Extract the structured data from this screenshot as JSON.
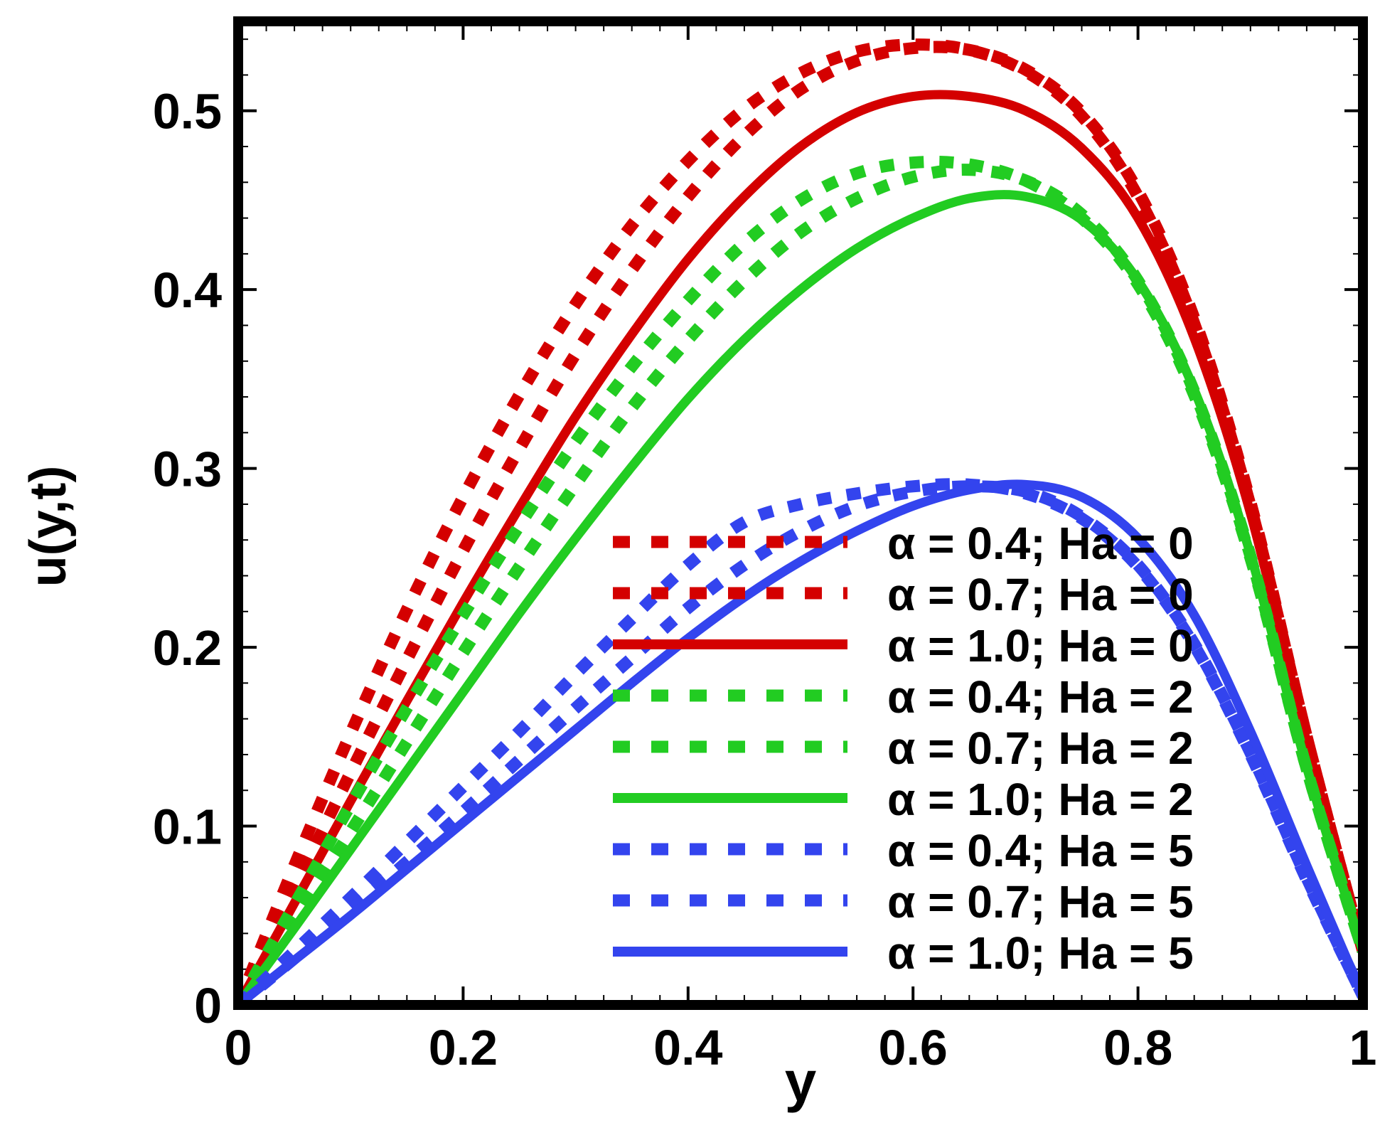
{
  "chart_data": {
    "type": "line",
    "title": "",
    "xlabel": "y",
    "ylabel": "u(y,t)",
    "xlim": [
      0,
      1
    ],
    "ylim": [
      0,
      0.55
    ],
    "x_ticks": [
      0,
      0.2,
      0.4,
      0.6,
      0.8,
      1
    ],
    "x_tick_labels": [
      "0",
      "0.2",
      "0.4",
      "0.6",
      "0.8",
      "1"
    ],
    "y_ticks": [
      0,
      0.1,
      0.2,
      0.3,
      0.4,
      0.5
    ],
    "y_tick_labels": [
      "0",
      "0.1",
      "0.2",
      "0.3",
      "0.4",
      "0.5"
    ],
    "grid": false,
    "legend_position": "lower-right",
    "x": [
      0,
      0.05,
      0.1,
      0.15,
      0.2,
      0.25,
      0.3,
      0.35,
      0.4,
      0.45,
      0.5,
      0.55,
      0.6,
      0.65,
      0.7,
      0.75,
      0.8,
      0.85,
      0.9,
      0.95,
      1.0
    ],
    "series": [
      {
        "name": "α = 0.4; Ha = 0",
        "color": "#d40000",
        "style": "dotted",
        "values": [
          0,
          0.078,
          0.152,
          0.221,
          0.284,
          0.341,
          0.392,
          0.436,
          0.472,
          0.501,
          0.521,
          0.533,
          0.537,
          0.534,
          0.522,
          0.497,
          0.452,
          0.381,
          0.279,
          0.15,
          0.03
        ]
      },
      {
        "name": "α = 0.7; Ha = 0",
        "color": "#d40000",
        "style": "dotted",
        "values": [
          0,
          0.065,
          0.13,
          0.193,
          0.254,
          0.311,
          0.364,
          0.411,
          0.452,
          0.486,
          0.512,
          0.528,
          0.535,
          0.534,
          0.523,
          0.499,
          0.455,
          0.384,
          0.281,
          0.15,
          0.03
        ]
      },
      {
        "name": "α = 1.0; Ha = 0",
        "color": "#d40000",
        "style": "solid",
        "values": [
          0,
          0.057,
          0.114,
          0.17,
          0.225,
          0.278,
          0.329,
          0.375,
          0.417,
          0.452,
          0.48,
          0.499,
          0.508,
          0.508,
          0.5,
          0.479,
          0.44,
          0.373,
          0.275,
          0.147,
          0.03
        ]
      },
      {
        "name": "α = 0.4; Ha = 2",
        "color": "#22cc22",
        "style": "dotted",
        "values": [
          0,
          0.056,
          0.112,
          0.166,
          0.218,
          0.268,
          0.315,
          0.357,
          0.394,
          0.426,
          0.45,
          0.465,
          0.471,
          0.47,
          0.461,
          0.44,
          0.403,
          0.341,
          0.25,
          0.132,
          0.03
        ]
      },
      {
        "name": "α = 0.7; Ha = 2",
        "color": "#22cc22",
        "style": "dotted",
        "values": [
          0,
          0.048,
          0.097,
          0.147,
          0.197,
          0.245,
          0.291,
          0.334,
          0.372,
          0.405,
          0.432,
          0.451,
          0.463,
          0.467,
          0.461,
          0.442,
          0.405,
          0.343,
          0.251,
          0.132,
          0.03
        ]
      },
      {
        "name": "α = 1.0; Ha = 2",
        "color": "#22cc22",
        "style": "solid",
        "values": [
          0,
          0.043,
          0.087,
          0.131,
          0.175,
          0.219,
          0.261,
          0.301,
          0.339,
          0.372,
          0.4,
          0.423,
          0.44,
          0.451,
          0.452,
          0.439,
          0.405,
          0.344,
          0.252,
          0.133,
          0.03
        ]
      },
      {
        "name": "α = 0.4; Ha = 5",
        "color": "#3344ee",
        "style": "dotted",
        "values": [
          0,
          0.03,
          0.06,
          0.091,
          0.122,
          0.153,
          0.185,
          0.216,
          0.246,
          0.27,
          0.28,
          0.286,
          0.29,
          0.291,
          0.286,
          0.272,
          0.245,
          0.201,
          0.14,
          0.07,
          0.005
        ]
      },
      {
        "name": "α = 0.7; Ha = 5",
        "color": "#3344ee",
        "style": "dotted",
        "values": [
          0,
          0.026,
          0.053,
          0.08,
          0.108,
          0.137,
          0.166,
          0.194,
          0.222,
          0.246,
          0.265,
          0.279,
          0.287,
          0.29,
          0.287,
          0.273,
          0.246,
          0.202,
          0.141,
          0.071,
          0.005
        ]
      },
      {
        "name": "α = 1.0; Ha = 5",
        "color": "#3344ee",
        "style": "solid",
        "values": [
          0,
          0.025,
          0.05,
          0.076,
          0.102,
          0.128,
          0.154,
          0.18,
          0.205,
          0.228,
          0.248,
          0.265,
          0.279,
          0.288,
          0.291,
          0.284,
          0.261,
          0.218,
          0.153,
          0.078,
          0.005
        ]
      }
    ]
  }
}
